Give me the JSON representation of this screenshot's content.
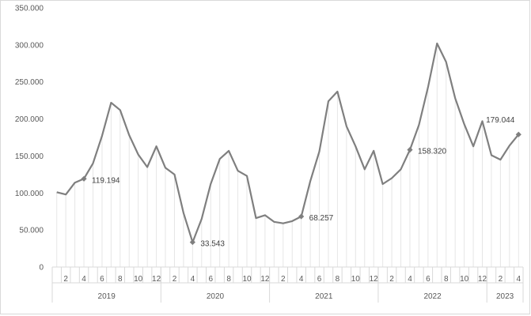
{
  "chart_data": {
    "type": "line",
    "title": "",
    "xlabel": "",
    "ylabel": "",
    "ylim": [
      0,
      350000
    ],
    "y_ticks": [
      "0",
      "50.000",
      "100.000",
      "150.000",
      "200.000",
      "250.000",
      "300.000",
      "350.000"
    ],
    "grid": "vertical drop lines",
    "legend": "none",
    "colors": {
      "line": "#7f7f7f",
      "axis": "#d9d9d9",
      "drop": "#e6e6e6"
    },
    "years": [
      {
        "label": "2019",
        "months": 12
      },
      {
        "label": "2020",
        "months": 12
      },
      {
        "label": "2021",
        "months": 12
      },
      {
        "label": "2022",
        "months": 12
      },
      {
        "label": "2023",
        "months": 4
      }
    ],
    "month_tick_labels": [
      "",
      "2",
      "",
      "4",
      "",
      "6",
      "",
      "8",
      "",
      "10",
      "",
      "12"
    ],
    "series": [
      {
        "values": [
          101000,
          98000,
          114000,
          119194,
          140000,
          177000,
          222000,
          212000,
          178000,
          152000,
          135000,
          163000,
          134000,
          125000,
          73000,
          33543,
          65000,
          112000,
          146000,
          157000,
          130000,
          123000,
          66000,
          70000,
          61000,
          59000,
          62000,
          68257,
          116000,
          156000,
          224000,
          237000,
          190000,
          163000,
          132000,
          157000,
          112000,
          120000,
          132000,
          158320,
          192000,
          243000,
          302000,
          277000,
          228000,
          193000,
          163000,
          197000,
          151000,
          145000,
          164000,
          179044
        ]
      }
    ],
    "data_labels": [
      {
        "index": 3,
        "text": "119.194"
      },
      {
        "index": 15,
        "text": "33.543"
      },
      {
        "index": 27,
        "text": "68.257"
      },
      {
        "index": 39,
        "text": "158.320"
      },
      {
        "index": 51,
        "text": "179.044"
      }
    ]
  }
}
